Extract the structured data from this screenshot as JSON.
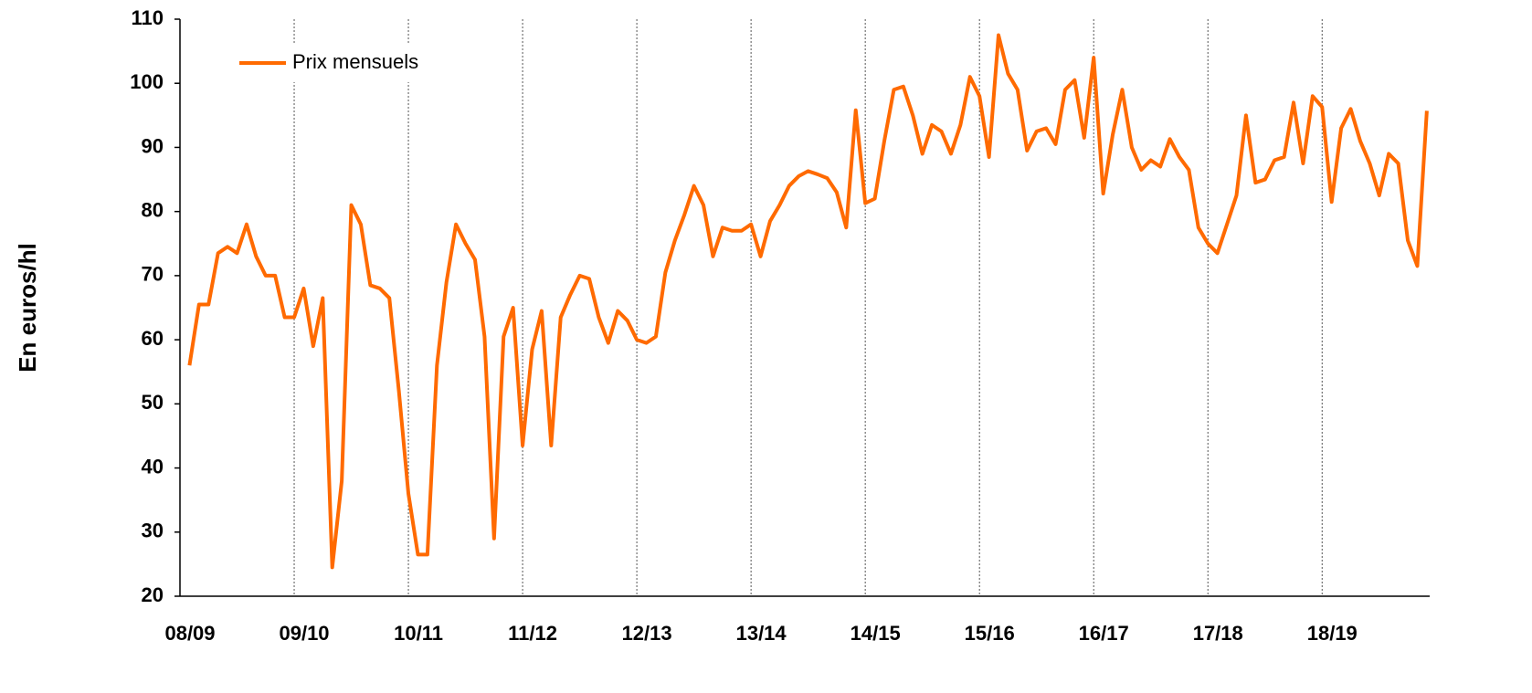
{
  "chart_data": {
    "type": "line",
    "ylabel": "En euros/hl",
    "x": [
      1,
      2,
      3,
      4,
      5,
      6,
      7,
      8,
      9,
      10,
      11,
      12,
      13,
      14,
      15,
      16,
      17,
      18,
      19,
      20,
      21,
      22,
      23,
      24,
      25,
      26,
      27,
      28,
      29,
      30,
      31,
      32,
      33,
      34,
      35,
      36,
      37,
      38,
      39,
      40,
      41,
      42,
      43,
      44,
      45,
      46,
      47,
      48,
      49,
      50,
      51,
      52,
      53,
      54,
      55,
      56,
      57,
      58,
      59,
      60,
      61,
      62,
      63,
      64,
      65,
      66,
      67,
      68,
      69,
      70,
      71,
      72,
      73,
      74,
      75,
      76,
      77,
      78,
      79,
      80,
      81,
      82,
      83,
      84,
      85,
      86,
      87,
      88,
      89,
      90,
      91,
      92,
      93,
      94,
      95,
      96,
      97,
      98,
      99,
      100,
      101,
      102,
      103,
      104,
      105,
      106,
      107,
      108,
      109,
      110,
      111,
      112,
      113,
      114,
      115,
      116,
      117,
      118,
      119,
      120,
      121,
      122,
      123,
      124,
      125,
      126,
      127,
      128,
      129,
      130,
      131
    ],
    "series": [
      {
        "name": "Prix mensuels",
        "color": "#ff6a00",
        "values": [
          56,
          65.5,
          65.5,
          73.5,
          74.5,
          73.5,
          78,
          73,
          70,
          70,
          63.5,
          63.5,
          68,
          59,
          66.5,
          24.5,
          38,
          81,
          78,
          68.5,
          68,
          66.5,
          52,
          36,
          26.5,
          26.5,
          56,
          69,
          78,
          75,
          72.5,
          60.5,
          29,
          60.5,
          65,
          43.5,
          58.5,
          64.5,
          43.5,
          63.5,
          67,
          70,
          69.5,
          63.5,
          59.5,
          64.5,
          63,
          60,
          59.5,
          60.5,
          70.5,
          75.5,
          79.5,
          84,
          81,
          73,
          77.5,
          77,
          77,
          78,
          73,
          78.5,
          81,
          84,
          85.5,
          86.3,
          85.8,
          85.2,
          83,
          77.5,
          95.8,
          81.3,
          82,
          91,
          99,
          99.5,
          95,
          89,
          93.5,
          92.5,
          89,
          93.5,
          101,
          98,
          88.5,
          107.5,
          101.5,
          99,
          89.5,
          92.5,
          93,
          90.5,
          99,
          100.5,
          91.5,
          104,
          82.8,
          92,
          99,
          90,
          86.5,
          88,
          87,
          91.3,
          88.5,
          86.5,
          77.5,
          75,
          73.5,
          78,
          82.5,
          95,
          84.5,
          85,
          88,
          88.5,
          97,
          87.5,
          98,
          96.3,
          81.5,
          93,
          96,
          91,
          87.5,
          82.5,
          89,
          87.5,
          75.5,
          71.5,
          95.7
        ]
      }
    ],
    "xlim": [
      0,
      131.3
    ],
    "xticks": [
      {
        "value": 0,
        "label": "08/09"
      },
      {
        "value": 12,
        "label": "09/10"
      },
      {
        "value": 24,
        "label": "10/11"
      },
      {
        "value": 36,
        "label": "11/12"
      },
      {
        "value": 48,
        "label": "12/13"
      },
      {
        "value": 60,
        "label": "13/14"
      },
      {
        "value": 72,
        "label": "14/15"
      },
      {
        "value": 84,
        "label": "15/16"
      },
      {
        "value": 96,
        "label": "16/17"
      },
      {
        "value": 108,
        "label": "17/18"
      },
      {
        "value": 120,
        "label": "18/19"
      }
    ],
    "ylim": [
      20,
      110
    ],
    "yticks": [
      20,
      30,
      40,
      50,
      60,
      70,
      80,
      90,
      100,
      110
    ],
    "grid": "x",
    "legend": "upper left"
  }
}
